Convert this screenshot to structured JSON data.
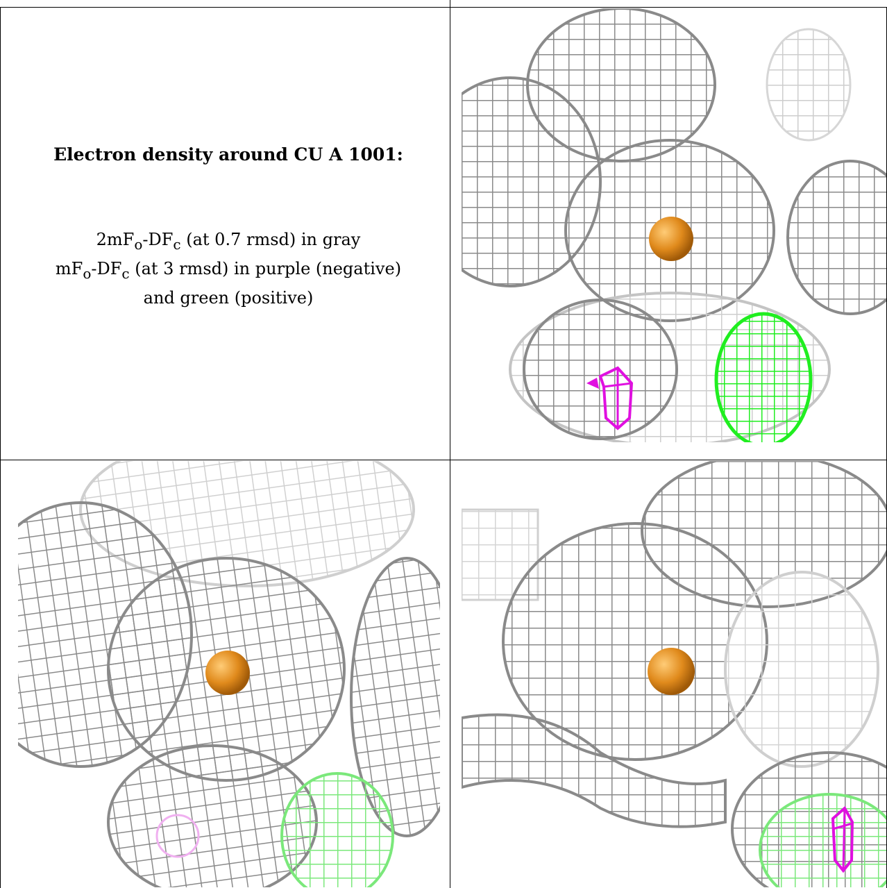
{
  "caption": {
    "title": "Electron density around CU A 1001:",
    "line1": "2mFₒ-DFᴄ (at 0.7 rmsd) in gray",
    "line2": "mFₒ-DFᴄ (at 3 rmsd) in purple (negative)",
    "line3": "and green (positive)"
  },
  "colors": {
    "mesh_gray": "#8c8c8c",
    "mesh_light": "#cfcfcf",
    "negative_purple": "#e010e0",
    "positive_green": "#20ee20",
    "copper_orange": "#e08a1c"
  },
  "panels": [
    {
      "name": "view-1",
      "atom": "CU A 1001"
    },
    {
      "name": "view-2",
      "atom": "CU A 1001"
    },
    {
      "name": "view-3",
      "atom": "CU A 1001"
    }
  ]
}
